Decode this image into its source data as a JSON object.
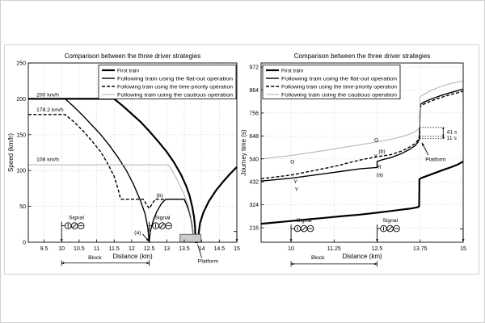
{
  "figure": {
    "background": "#ffffff",
    "panel_border": "#d2d2d2",
    "grid_color": "#c9c9c9",
    "axis_color": "#000000",
    "platform_fill": "#cccccc",
    "cautious_gray": "#b0b0b0"
  },
  "chart_data": [
    {
      "type": "line",
      "title": "Comparison between the three driver strategies",
      "xlabel": "Distance (km)",
      "ylabel": "Speed (km/h)",
      "xlim": [
        9.05,
        15
      ],
      "ylim": [
        0,
        250
      ],
      "xticks": [
        "9.5",
        "10",
        "10.5",
        "11",
        "11.5",
        "12",
        "12.5",
        "13",
        "13.5",
        "14",
        "14.5",
        "15"
      ],
      "yticks": [
        "0",
        "50",
        "100",
        "150",
        "200",
        "250"
      ],
      "grid": true,
      "legend_position": "ne",
      "series": [
        {
          "name": "First train",
          "style": "solid",
          "width": 2.2,
          "color": "#000000",
          "points": [
            [
              9.05,
              200
            ],
            [
              11.5,
              200
            ],
            [
              11.75,
              190
            ],
            [
              12,
              179
            ],
            [
              12.25,
              168
            ],
            [
              12.5,
              155
            ],
            [
              12.75,
              141
            ],
            [
              13,
              126
            ],
            [
              13.2,
              112
            ],
            [
              13.4,
              95
            ],
            [
              13.55,
              79
            ],
            [
              13.65,
              65
            ],
            [
              13.73,
              49
            ],
            [
              13.78,
              35
            ],
            [
              13.81,
              20
            ],
            [
              13.82,
              0
            ],
            [
              13.88,
              0
            ],
            [
              13.95,
              27
            ],
            [
              14.05,
              42
            ],
            [
              14.2,
              57
            ],
            [
              14.4,
              72
            ],
            [
              14.6,
              84
            ],
            [
              14.8,
              95
            ],
            [
              15,
              105
            ]
          ]
        },
        {
          "name": "Following train using the flat-out operation",
          "style": "solid",
          "width": 1.4,
          "color": "#000000",
          "points": [
            [
              9.05,
              200
            ],
            [
              10.1,
              200
            ],
            [
              10.35,
              189
            ],
            [
              10.6,
              177
            ],
            [
              10.85,
              164
            ],
            [
              11.1,
              151
            ],
            [
              11.35,
              136
            ],
            [
              11.6,
              119
            ],
            [
              11.85,
              100
            ],
            [
              12.05,
              81
            ],
            [
              12.25,
              58
            ],
            [
              12.38,
              40
            ],
            [
              12.46,
              20
            ],
            [
              12.5,
              0
            ],
            [
              12.53,
              15
            ],
            [
              12.62,
              31
            ],
            [
              12.72,
              43
            ],
            [
              12.85,
              54
            ],
            [
              12.97,
              60
            ],
            [
              13.5,
              60
            ],
            [
              13.58,
              51
            ],
            [
              13.65,
              41
            ],
            [
              13.7,
              31
            ],
            [
              13.74,
              18
            ],
            [
              13.77,
              0
            ]
          ]
        },
        {
          "name": "Following train using the  time-priority operation",
          "style": "dashed",
          "width": 1.4,
          "color": "#000000",
          "points": [
            [
              9.05,
              178.2
            ],
            [
              10.1,
              178.2
            ],
            [
              10.35,
              168
            ],
            [
              10.6,
              156
            ],
            [
              10.85,
              142
            ],
            [
              11.1,
              127
            ],
            [
              11.3,
              111
            ],
            [
              11.5,
              92
            ],
            [
              11.62,
              73
            ],
            [
              11.68,
              61
            ],
            [
              11.7,
              60
            ],
            [
              12.33,
              60
            ],
            [
              12.42,
              53
            ],
            [
              12.5,
              47
            ],
            [
              12.58,
              53
            ],
            [
              12.67,
              60
            ],
            [
              13.5,
              60
            ],
            [
              13.58,
              51
            ],
            [
              13.65,
              41
            ],
            [
              13.7,
              31
            ],
            [
              13.74,
              18
            ],
            [
              13.77,
              0
            ]
          ]
        },
        {
          "name": "Following train using the cautious operation",
          "style": "solid",
          "width": 1.0,
          "color": "#b0b0b0",
          "points": [
            [
              9.05,
              108
            ],
            [
              13.05,
              108
            ],
            [
              13.2,
              96
            ],
            [
              13.35,
              82
            ],
            [
              13.5,
              66
            ],
            [
              13.6,
              53
            ],
            [
              13.68,
              38
            ],
            [
              13.74,
              22
            ],
            [
              13.78,
              0
            ]
          ]
        }
      ],
      "annotations": [
        {
          "type": "text",
          "x": 9.28,
          "y": 206,
          "text": "200 km/h",
          "anchor": "start"
        },
        {
          "type": "text",
          "x": 9.28,
          "y": 185,
          "text": "178.2 km/h",
          "anchor": "start"
        },
        {
          "type": "text",
          "x": 9.28,
          "y": 116,
          "text": "108 km/h",
          "anchor": "start"
        },
        {
          "type": "text",
          "x": 12.8,
          "y": 66,
          "text": "(b)"
        },
        {
          "type": "text",
          "x": 12.17,
          "y": 14,
          "text": "(a)"
        },
        {
          "type": "arrow",
          "x1": 12.31,
          "y1": 11.5,
          "x2": 12.49,
          "y2": 1.5
        },
        {
          "type": "text",
          "x": 10.42,
          "y": 35,
          "text": "Signal"
        },
        {
          "type": "signal",
          "x": 10,
          "y": 23,
          "pole_to_axis": true
        },
        {
          "type": "text",
          "x": 12.88,
          "y": 35,
          "text": "Signal"
        },
        {
          "type": "signal",
          "x": 12.5,
          "y": 23,
          "pole_to_axis": false
        },
        {
          "type": "rect",
          "x1": 13.38,
          "x2": 13.97,
          "y1": 0,
          "y2": 11
        },
        {
          "type": "leader",
          "x1": 14.0,
          "y1": -22,
          "x2": 13.88,
          "y2": -3
        },
        {
          "type": "text",
          "x": 14.18,
          "y": -26,
          "text": "Platform"
        },
        {
          "type": "dblarrow-h",
          "x1": 10,
          "x2": 12.5,
          "y": -29
        },
        {
          "type": "text",
          "x": 10.95,
          "y": -21,
          "text": "Block"
        },
        {
          "type": "edge-arrow",
          "x": 15,
          "y": 15
        }
      ]
    },
    {
      "type": "line",
      "title": "Comparison between the three driver strategies",
      "xlabel": "Distance (km)",
      "ylabel": "Journey time (s)",
      "xlim": [
        9.13,
        15
      ],
      "ylim": [
        148,
        991
      ],
      "xticks": [
        "10",
        "11.25",
        "12.5",
        "13.75",
        "15"
      ],
      "yticks": [
        "216",
        "324",
        "432",
        "540",
        "648",
        "756",
        "864",
        "972"
      ],
      "grid": true,
      "legend_position": "nw",
      "series": [
        {
          "name": "First train",
          "style": "solid",
          "width": 2.2,
          "color": "#000000",
          "points": [
            [
              9.13,
              235
            ],
            [
              10,
              248
            ],
            [
              10.5,
              256
            ],
            [
              11,
              263
            ],
            [
              11.5,
              271
            ],
            [
              12,
              278
            ],
            [
              12.5,
              287
            ],
            [
              12.9,
              295
            ],
            [
              13.2,
              301
            ],
            [
              13.45,
              306
            ],
            [
              13.6,
              310
            ],
            [
              13.68,
              313
            ],
            [
              13.72,
              317
            ],
            [
              13.73,
              445
            ],
            [
              13.8,
              451
            ],
            [
              13.95,
              460
            ],
            [
              14.15,
              472
            ],
            [
              14.4,
              487
            ],
            [
              14.65,
              501
            ],
            [
              14.85,
              514
            ],
            [
              15,
              528
            ]
          ]
        },
        {
          "name": "Following train using the flat-out operation",
          "style": "solid",
          "width": 1.4,
          "color": "#000000",
          "points": [
            [
              9.13,
              436
            ],
            [
              10,
              449
            ],
            [
              10.5,
              460
            ],
            [
              11,
              471
            ],
            [
              11.5,
              482
            ],
            [
              12,
              493
            ],
            [
              12.3,
              497
            ],
            [
              12.45,
              499
            ],
            [
              12.5,
              500
            ],
            [
              12.5,
              528
            ],
            [
              12.65,
              536
            ],
            [
              12.9,
              546
            ],
            [
              13.2,
              564
            ],
            [
              13.45,
              585
            ],
            [
              13.6,
              602
            ],
            [
              13.68,
              617
            ],
            [
              13.73,
              635
            ],
            [
              13.75,
              795
            ],
            [
              13.85,
              806
            ],
            [
              14.05,
              820
            ],
            [
              14.3,
              835
            ],
            [
              14.6,
              850
            ],
            [
              15,
              868
            ]
          ]
        },
        {
          "name": "Following train using the time-priority operation",
          "style": "dashed",
          "width": 1.4,
          "color": "#000000",
          "points": [
            [
              9.13,
              447
            ],
            [
              10,
              464
            ],
            [
              10.5,
              480
            ],
            [
              11,
              496
            ],
            [
              11.4,
              510
            ],
            [
              11.8,
              527
            ],
            [
              12.1,
              538
            ],
            [
              12.3,
              544
            ],
            [
              12.5,
              550
            ],
            [
              12.7,
              555
            ],
            [
              12.9,
              560
            ],
            [
              13.2,
              576
            ],
            [
              13.45,
              596
            ],
            [
              13.6,
              612
            ],
            [
              13.68,
              627
            ],
            [
              13.73,
              646
            ],
            [
              13.75,
              786
            ],
            [
              13.85,
              797
            ],
            [
              14.05,
              811
            ],
            [
              14.3,
              826
            ],
            [
              14.6,
              841
            ],
            [
              15,
              858
            ]
          ]
        },
        {
          "name": "Following train using the cautious operation",
          "style": "solid",
          "width": 1.0,
          "color": "#b0b0b0",
          "points": [
            [
              9.13,
              540
            ],
            [
              10,
              556
            ],
            [
              10.5,
              568
            ],
            [
              11,
              580
            ],
            [
              11.5,
              593
            ],
            [
              12,
              606
            ],
            [
              12.5,
              620
            ],
            [
              12.9,
              632
            ],
            [
              13.2,
              644
            ],
            [
              13.45,
              657
            ],
            [
              13.6,
              668
            ],
            [
              13.68,
              677
            ],
            [
              13.73,
              688
            ],
            [
              13.75,
              833
            ],
            [
              13.85,
              843
            ],
            [
              14.05,
              860
            ],
            [
              14.3,
              878
            ],
            [
              14.6,
              893
            ],
            [
              15,
              906
            ]
          ]
        }
      ],
      "annotations": [
        {
          "type": "text",
          "x": 10.04,
          "y": 528,
          "text": "G"
        },
        {
          "type": "text",
          "x": 12.48,
          "y": 630,
          "text": "G"
        },
        {
          "type": "text",
          "x": 10.13,
          "y": 434,
          "text": "Y"
        },
        {
          "type": "text",
          "x": 10.16,
          "y": 398,
          "text": "Y"
        },
        {
          "type": "text",
          "x": 12.46,
          "y": 553,
          "text": "Y"
        },
        {
          "type": "text",
          "x": 12.64,
          "y": 577,
          "text": "(b)"
        },
        {
          "type": "text",
          "x": 12.57,
          "y": 502,
          "text": "R"
        },
        {
          "type": "text",
          "x": 12.58,
          "y": 466,
          "text": "(a)"
        },
        {
          "type": "hline-dotted",
          "x1": 13.74,
          "x2": 14.45,
          "y": 635
        },
        {
          "type": "hline-dotted",
          "x1": 13.74,
          "x2": 14.45,
          "y": 646
        },
        {
          "type": "hline-dotted",
          "x1": 13.74,
          "x2": 14.45,
          "y": 688
        },
        {
          "type": "dblarrow-v",
          "x": 14.42,
          "y1": 646,
          "y2": 688
        },
        {
          "type": "dblarrow-v",
          "x": 14.42,
          "y1": 635,
          "y2": 646
        },
        {
          "type": "text",
          "x": 14.52,
          "y": 667,
          "text": "41 s",
          "anchor": "start"
        },
        {
          "type": "text",
          "x": 14.52,
          "y": 640,
          "text": "11 s",
          "anchor": "start"
        },
        {
          "type": "text",
          "x": 14.2,
          "y": 539,
          "text": "Platform"
        },
        {
          "type": "arrow",
          "x1": 13.99,
          "y1": 558,
          "x2": 13.8,
          "y2": 616
        },
        {
          "type": "text",
          "x": 10.38,
          "y": 252,
          "text": "Signal"
        },
        {
          "type": "signal",
          "x": 10,
          "y": 212,
          "pole_to_axis": true
        },
        {
          "type": "text",
          "x": 12.88,
          "y": 252,
          "text": "Signal"
        },
        {
          "type": "signal",
          "x": 12.5,
          "y": 212,
          "pole_to_axis": true
        },
        {
          "type": "dblarrow-h",
          "x1": 10,
          "x2": 12.5,
          "y": 46
        },
        {
          "type": "text",
          "x": 10.78,
          "y": 77,
          "text": "Block"
        },
        {
          "type": "edge-arrow",
          "x": 15,
          "y": 210
        }
      ]
    }
  ]
}
